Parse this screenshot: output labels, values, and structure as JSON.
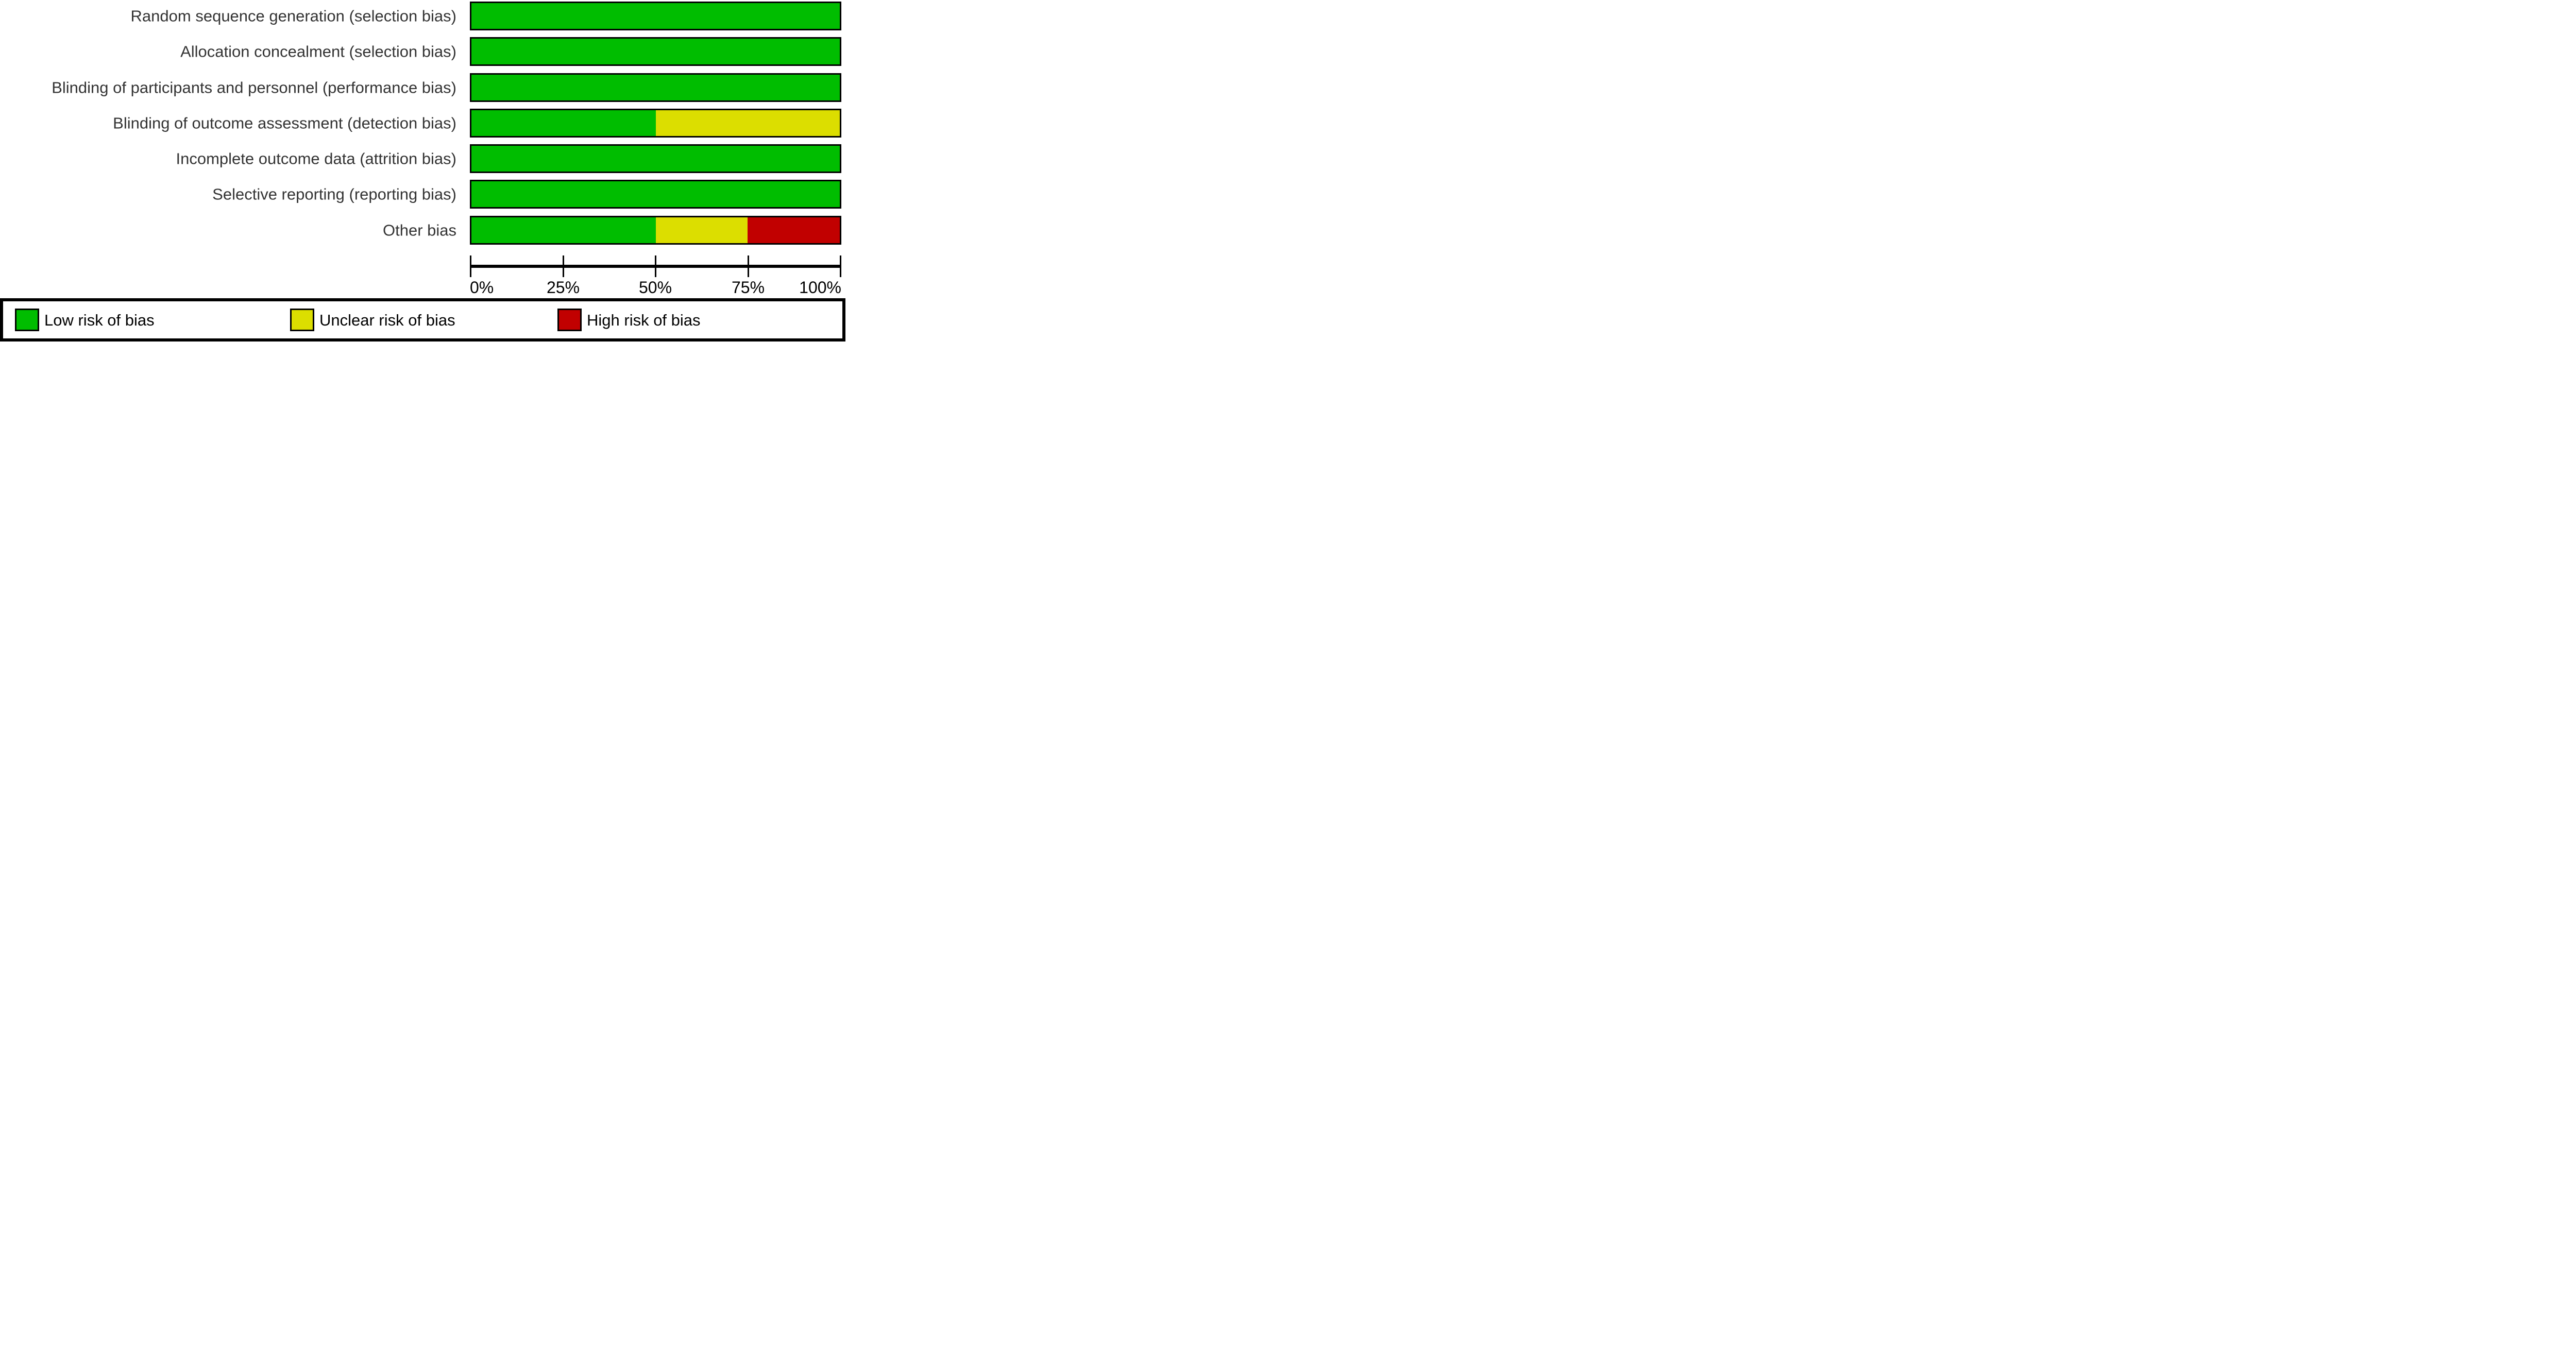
{
  "chart_data": {
    "type": "bar",
    "orientation": "horizontal",
    "stacked": true,
    "value_unit": "percent",
    "xlim": [
      0,
      100
    ],
    "x_tick_labels": [
      "0%",
      "25%",
      "50%",
      "75%",
      "100%"
    ],
    "grid": false,
    "legend_position": "bottom",
    "categories": [
      "Random sequence generation (selection bias)",
      "Allocation concealment (selection bias)",
      "Blinding of participants and personnel (performance bias)",
      "Blinding of outcome assessment (detection bias)",
      "Incomplete outcome data (attrition bias)",
      "Selective reporting (reporting bias)",
      "Other bias"
    ],
    "series": [
      {
        "name": "Low risk of bias",
        "color": "#00BD00",
        "values": [
          100,
          100,
          100,
          50,
          100,
          100,
          50
        ]
      },
      {
        "name": "Unclear risk of bias",
        "color": "#DCDE00",
        "values": [
          0,
          0,
          0,
          50,
          0,
          0,
          25
        ]
      },
      {
        "name": "High risk of bias",
        "color": "#C10000",
        "values": [
          0,
          0,
          0,
          0,
          0,
          0,
          25
        ]
      }
    ]
  },
  "legend": {
    "items": [
      {
        "label": "Low risk of bias",
        "color": "#00BD00"
      },
      {
        "label": "Unclear risk of bias",
        "color": "#DCDE00"
      },
      {
        "label": "High risk of bias",
        "color": "#C10000"
      }
    ]
  },
  "colors": {
    "bar_border": "#000000",
    "axis": "#000000",
    "row_label_text": "#333333",
    "axis_label_text": "#000000",
    "background": "#FFFFFF"
  }
}
